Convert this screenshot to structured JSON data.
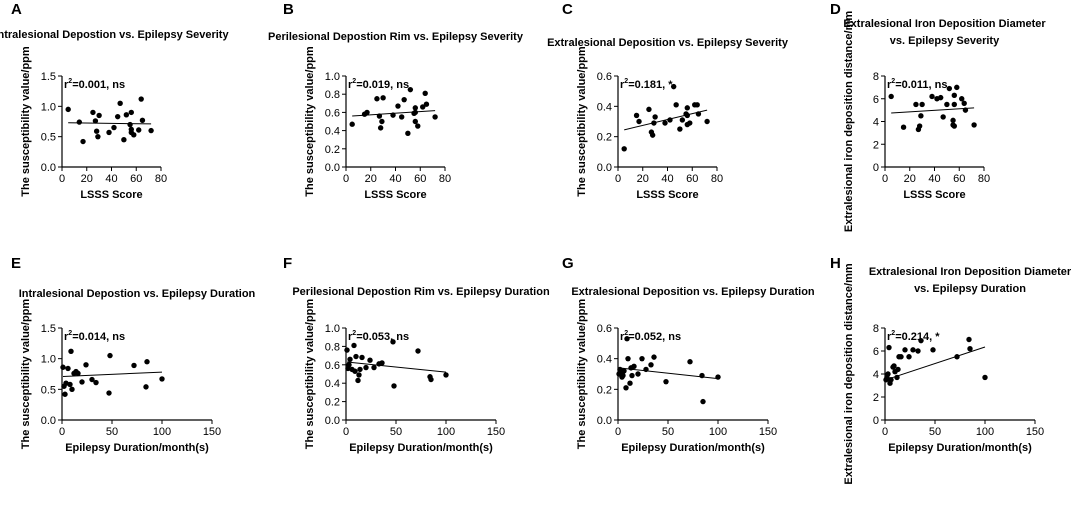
{
  "chart_data": [
    {
      "panel": "A",
      "type": "scatter",
      "title": [
        "Intralesional Depostion vs. Epilepsy Severity"
      ],
      "xlabel": "LSSS Score",
      "ylabel": "The susceptibility value/ppm",
      "xlim": [
        0,
        80
      ],
      "ylim": [
        0,
        1.5
      ],
      "xticks": [
        0,
        20,
        40,
        60,
        80
      ],
      "yticks": [
        0,
        0.5,
        1.0,
        1.5
      ],
      "xtick_labels": [
        "0",
        "20",
        "40",
        "60",
        "80"
      ],
      "ytick_labels": [
        "0.0",
        "0.5",
        "1.0",
        "1.5"
      ],
      "annotation_pre": "r",
      "annotation_sup": "2",
      "annotation_post": "=0.001, ns",
      "fit": {
        "x": [
          5,
          72
        ],
        "y": [
          0.73,
          0.71
        ]
      },
      "x": [
        5,
        14,
        17,
        25,
        27,
        28,
        29,
        30,
        38,
        42,
        45,
        47,
        50,
        52,
        55,
        56,
        56,
        56,
        58,
        62,
        64,
        65,
        72
      ],
      "y": [
        0.95,
        0.74,
        0.42,
        0.9,
        0.76,
        0.59,
        0.5,
        0.85,
        0.57,
        0.65,
        0.83,
        1.05,
        0.45,
        0.86,
        0.7,
        0.62,
        0.57,
        0.9,
        0.53,
        0.61,
        1.12,
        0.77,
        0.6
      ]
    },
    {
      "panel": "B",
      "type": "scatter",
      "title": [
        "Perilesional Depostion Rim vs. Epilepsy Severity"
      ],
      "xlabel": "LSSS Score",
      "ylabel": "The susceptibility value/ppm",
      "xlim": [
        0,
        80
      ],
      "ylim": [
        0,
        1.0
      ],
      "xticks": [
        0,
        20,
        40,
        60,
        80
      ],
      "yticks": [
        0,
        0.2,
        0.4,
        0.6,
        0.8,
        1.0
      ],
      "xtick_labels": [
        "0",
        "20",
        "40",
        "60",
        "80"
      ],
      "ytick_labels": [
        "0.0",
        "0.2",
        "0.4",
        "0.6",
        "0.8",
        "1.0"
      ],
      "annotation_pre": "r",
      "annotation_sup": "2",
      "annotation_post": "=0.019, ns",
      "fit": {
        "x": [
          5,
          72
        ],
        "y": [
          0.56,
          0.62
        ]
      },
      "x": [
        5,
        15,
        17,
        25,
        27,
        28,
        29,
        30,
        38,
        42,
        45,
        47,
        50,
        52,
        55,
        56,
        56,
        56,
        58,
        62,
        64,
        65,
        72
      ],
      "y": [
        0.47,
        0.58,
        0.6,
        0.75,
        0.56,
        0.43,
        0.5,
        0.76,
        0.57,
        0.67,
        0.55,
        0.74,
        0.37,
        0.85,
        0.59,
        0.65,
        0.6,
        0.5,
        0.45,
        0.66,
        0.81,
        0.69,
        0.55
      ]
    },
    {
      "panel": "C",
      "type": "scatter",
      "title": [
        "Extralesional Deposition vs. Epilepsy Severity"
      ],
      "xlabel": "LSSS Score",
      "ylabel": "The susceptibility value/ppm",
      "xlim": [
        0,
        80
      ],
      "ylim": [
        0,
        0.6
      ],
      "xticks": [
        0,
        20,
        40,
        60,
        80
      ],
      "yticks": [
        0,
        0.2,
        0.4,
        0.6
      ],
      "xtick_labels": [
        "0",
        "20",
        "40",
        "60",
        "80"
      ],
      "ytick_labels": [
        "0.0",
        "0.2",
        "0.4",
        "0.6"
      ],
      "annotation_pre": "r",
      "annotation_sup": "2",
      "annotation_post": "=0.181, *",
      "fit": {
        "x": [
          5,
          72
        ],
        "y": [
          0.245,
          0.375
        ]
      },
      "x": [
        5,
        15,
        17,
        25,
        27,
        28,
        29,
        30,
        38,
        42,
        45,
        47,
        50,
        52,
        55,
        56,
        56,
        56,
        58,
        62,
        64,
        65,
        72
      ],
      "y": [
        0.12,
        0.34,
        0.3,
        0.38,
        0.23,
        0.21,
        0.29,
        0.33,
        0.29,
        0.31,
        0.53,
        0.41,
        0.25,
        0.31,
        0.35,
        0.28,
        0.34,
        0.39,
        0.29,
        0.41,
        0.41,
        0.35,
        0.3
      ]
    },
    {
      "panel": "D",
      "type": "scatter",
      "title": [
        "Extralesional Iron Deposition Diameter",
        "vs. Epilepsy Severity"
      ],
      "xlabel": "LSSS Score",
      "ylabel": "Extralesional iron deposition distance/mm",
      "xlim": [
        0,
        80
      ],
      "ylim": [
        0,
        8
      ],
      "xticks": [
        0,
        20,
        40,
        60,
        80
      ],
      "yticks": [
        0,
        2,
        4,
        6,
        8
      ],
      "xtick_labels": [
        "0",
        "20",
        "40",
        "60",
        "80"
      ],
      "ytick_labels": [
        "0",
        "2",
        "4",
        "6",
        "8"
      ],
      "annotation_pre": "r",
      "annotation_sup": "2",
      "annotation_post": "=0.011, ns",
      "fit": {
        "x": [
          5,
          72
        ],
        "y": [
          4.75,
          5.2
        ]
      },
      "x": [
        5,
        15,
        25,
        27,
        28,
        29,
        30,
        38,
        42,
        45,
        47,
        50,
        52,
        55,
        55,
        56,
        56,
        56,
        58,
        62,
        64,
        65,
        72
      ],
      "y": [
        6.2,
        3.5,
        5.5,
        3.3,
        3.6,
        4.5,
        5.5,
        6.2,
        6.0,
        6.1,
        4.4,
        5.5,
        6.9,
        3.7,
        4.1,
        6.3,
        3.6,
        5.5,
        7.0,
        6.0,
        5.6,
        5.0,
        3.7
      ]
    },
    {
      "panel": "E",
      "type": "scatter",
      "title": [
        "Intralesional Depostion vs. Epilepsy Duration"
      ],
      "xlabel": "Epilepsy Duration/month(s)",
      "ylabel": "The susceptibility value/ppm",
      "xlim": [
        0,
        150
      ],
      "ylim": [
        0,
        1.5
      ],
      "xticks": [
        0,
        50,
        100,
        150
      ],
      "yticks": [
        0,
        0.5,
        1.0,
        1.5
      ],
      "xtick_labels": [
        "0",
        "50",
        "100",
        "150"
      ],
      "ytick_labels": [
        "0.0",
        "0.5",
        "1.0",
        "1.5"
      ],
      "annotation_pre": "r",
      "annotation_sup": "2",
      "annotation_post": "=0.014, ns",
      "fit": {
        "x": [
          1,
          100
        ],
        "y": [
          0.71,
          0.78
        ]
      },
      "x": [
        1,
        2,
        3,
        4,
        6,
        8,
        9,
        10,
        12,
        14,
        16,
        20,
        24,
        30,
        34,
        47,
        48,
        72,
        84,
        85,
        100
      ],
      "y": [
        0.86,
        0.55,
        0.42,
        0.6,
        0.84,
        0.58,
        1.12,
        0.5,
        0.76,
        0.79,
        0.76,
        0.62,
        0.9,
        0.66,
        0.61,
        0.44,
        1.05,
        0.89,
        0.54,
        0.95,
        0.67
      ]
    },
    {
      "panel": "F",
      "type": "scatter",
      "title": [
        "Perilesional Depostion Rim vs. Epilepsy Duration"
      ],
      "xlabel": "Epilepsy Duration/month(s)",
      "ylabel": "The susceptibility value/ppm",
      "xlim": [
        0,
        150
      ],
      "ylim": [
        0,
        1.0
      ],
      "xticks": [
        0,
        50,
        100,
        150
      ],
      "yticks": [
        0,
        0.2,
        0.4,
        0.6,
        0.8,
        1.0
      ],
      "xtick_labels": [
        "0",
        "50",
        "100",
        "150"
      ],
      "ytick_labels": [
        "0.0",
        "0.2",
        "0.4",
        "0.6",
        "0.8",
        "1.0"
      ],
      "annotation_pre": "r",
      "annotation_sup": "2",
      "annotation_post": "=0.053, ns",
      "fit": {
        "x": [
          1,
          100
        ],
        "y": [
          0.63,
          0.52
        ]
      },
      "x": [
        1,
        2,
        3,
        4,
        6,
        8,
        9,
        10,
        12,
        13,
        14,
        16,
        20,
        24,
        28,
        33,
        36,
        47,
        48,
        72,
        84,
        85,
        100
      ],
      "y": [
        0.76,
        0.56,
        0.6,
        0.66,
        0.55,
        0.81,
        0.53,
        0.69,
        0.43,
        0.49,
        0.55,
        0.68,
        0.57,
        0.65,
        0.57,
        0.61,
        0.62,
        0.85,
        0.37,
        0.75,
        0.47,
        0.44,
        0.49
      ]
    },
    {
      "panel": "G",
      "type": "scatter",
      "title": [
        "Extralesional Deposition vs. Epilepsy Duration"
      ],
      "xlabel": "Epilepsy Duration/month(s)",
      "ylabel": "The susceptibility value/ppm",
      "xlim": [
        0,
        150
      ],
      "ylim": [
        0,
        0.6
      ],
      "xticks": [
        0,
        50,
        100,
        150
      ],
      "yticks": [
        0,
        0.2,
        0.4,
        0.6
      ],
      "xtick_labels": [
        "0",
        "50",
        "100",
        "150"
      ],
      "ytick_labels": [
        "0.0",
        "0.2",
        "0.4",
        "0.6"
      ],
      "annotation_pre": "r",
      "annotation_sup": "2",
      "annotation_post": "=0.052, ns",
      "fit": {
        "x": [
          1,
          100
        ],
        "y": [
          0.34,
          0.27
        ]
      },
      "x": [
        1,
        2,
        3,
        4,
        5,
        6,
        8,
        9,
        10,
        12,
        13,
        14,
        16,
        20,
        24,
        28,
        33,
        36,
        48,
        72,
        84,
        85,
        100
      ],
      "y": [
        0.3,
        0.33,
        0.3,
        0.28,
        0.29,
        0.32,
        0.21,
        0.53,
        0.4,
        0.24,
        0.34,
        0.29,
        0.35,
        0.3,
        0.4,
        0.33,
        0.36,
        0.41,
        0.25,
        0.38,
        0.29,
        0.12,
        0.28
      ]
    },
    {
      "panel": "H",
      "type": "scatter",
      "title": [
        "Extralesional Iron Deposition Diameter",
        "vs. Epilepsy Duration"
      ],
      "xlabel": "Epilepsy Duration/month(s)",
      "ylabel": "Extralesional iron deposition distance/mm",
      "xlim": [
        0,
        150
      ],
      "ylim": [
        0,
        8
      ],
      "xticks": [
        0,
        50,
        100,
        150
      ],
      "yticks": [
        0,
        2,
        4,
        6,
        8
      ],
      "xtick_labels": [
        "0",
        "50",
        "100",
        "150"
      ],
      "ytick_labels": [
        "0",
        "2",
        "4",
        "6",
        "8"
      ],
      "annotation_pre": "r",
      "annotation_sup": "2",
      "annotation_post": "=0.214, *",
      "fit": {
        "x": [
          1,
          100
        ],
        "y": [
          3.5,
          6.35
        ]
      },
      "x": [
        1,
        2,
        3,
        4,
        5,
        6,
        8,
        9,
        10,
        12,
        13,
        14,
        16,
        20,
        24,
        28,
        33,
        36,
        48,
        72,
        84,
        85,
        100
      ],
      "y": [
        3.5,
        3.7,
        4.0,
        6.3,
        3.2,
        3.5,
        4.6,
        4.7,
        4.2,
        3.7,
        4.4,
        5.5,
        5.5,
        6.1,
        5.5,
        6.1,
        6.0,
        6.9,
        6.1,
        5.5,
        7.0,
        6.2,
        3.7
      ]
    }
  ]
}
